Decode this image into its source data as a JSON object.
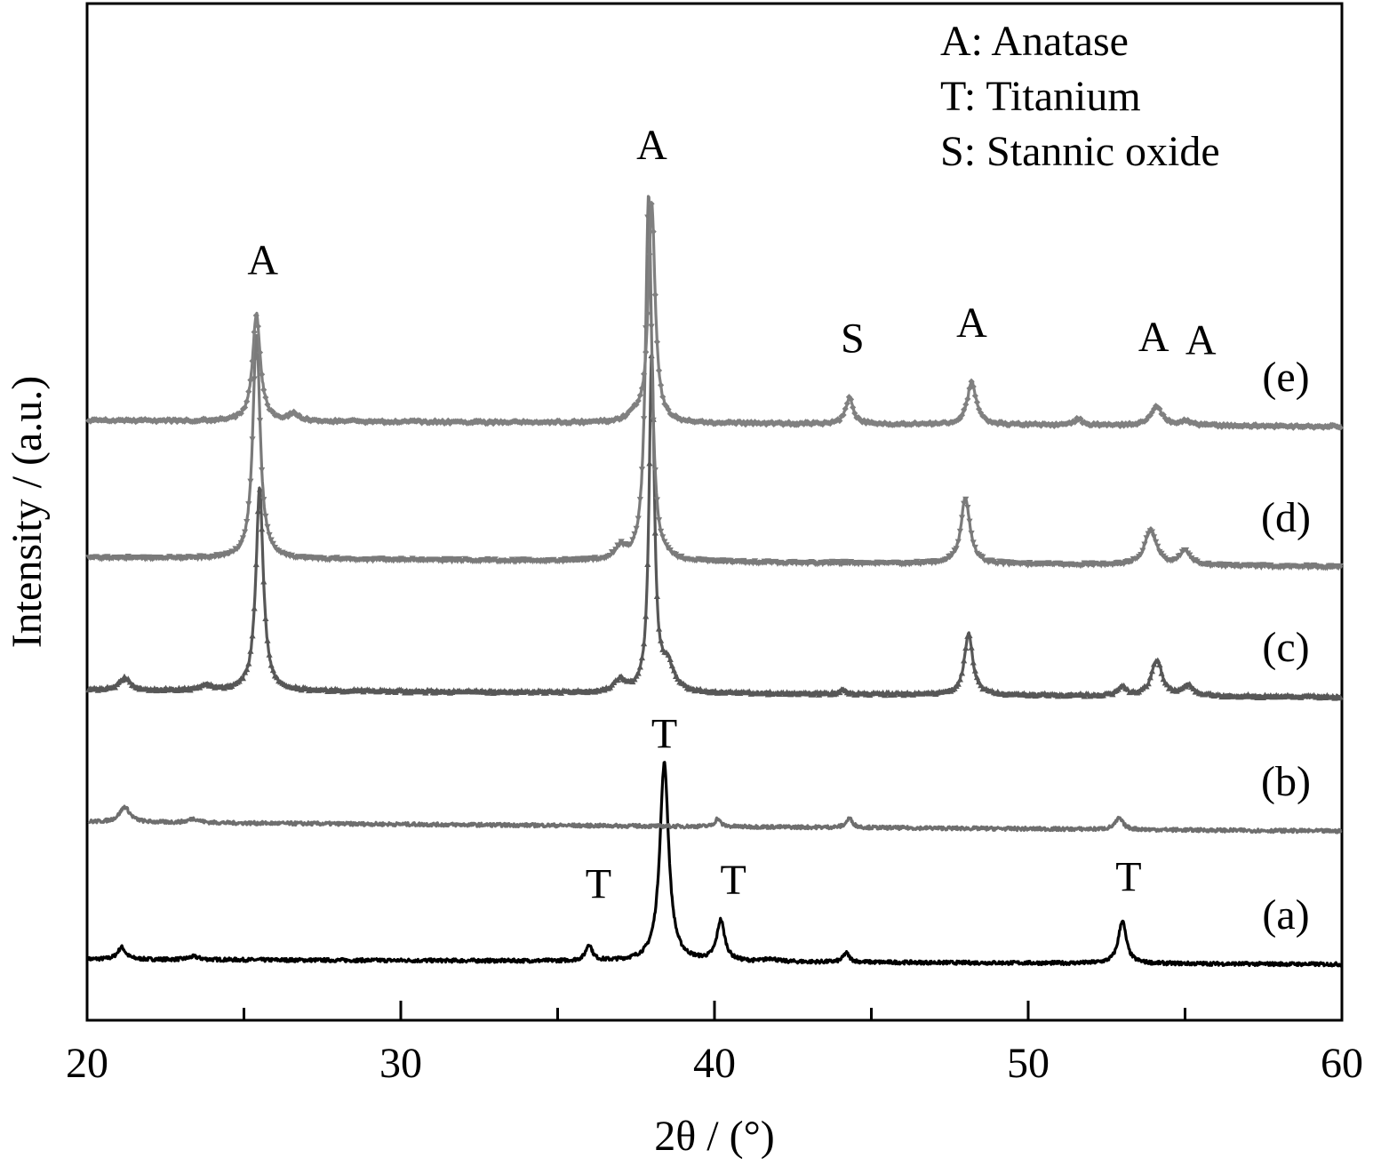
{
  "chart_data": {
    "type": "line",
    "xlabel": "2θ / (°)",
    "ylabel": "Intensity / (a.u.)",
    "xlim": [
      20,
      60
    ],
    "ylim": [
      0,
      100
    ],
    "xticks": [
      20,
      30,
      40,
      50,
      60
    ],
    "xminorticks": [
      25,
      35,
      45,
      55
    ],
    "grid": false,
    "legend_position": "top-right",
    "legend": [
      "A: Anatase",
      "T: Titanium",
      "S: Stannic oxide"
    ],
    "series": [
      {
        "name": "(a)",
        "color": "#000000",
        "marker": "none",
        "baseline": 6,
        "baseline_end": 5.5,
        "noise": 0.35,
        "peaks": [
          {
            "x": 21.1,
            "h": 1.2,
            "w": 0.15
          },
          {
            "x": 23.4,
            "h": 0.3,
            "w": 0.2
          },
          {
            "x": 36.0,
            "h": 1.6,
            "w": 0.12
          },
          {
            "x": 38.4,
            "h": 19.5,
            "w": 0.17
          },
          {
            "x": 40.2,
            "h": 4.0,
            "w": 0.15
          },
          {
            "x": 41.8,
            "h": 0.3,
            "w": 0.2
          },
          {
            "x": 44.2,
            "h": 0.9,
            "w": 0.12
          },
          {
            "x": 53.0,
            "h": 4.2,
            "w": 0.15
          }
        ]
      },
      {
        "name": "(b)",
        "color": "#6e6e6e",
        "marker": "none",
        "baseline": 19.5,
        "baseline_end": 18.6,
        "noise": 0.35,
        "peaks": [
          {
            "x": 21.2,
            "h": 1.5,
            "w": 0.2
          },
          {
            "x": 23.4,
            "h": 0.4,
            "w": 0.2
          },
          {
            "x": 40.1,
            "h": 0.8,
            "w": 0.1
          },
          {
            "x": 44.3,
            "h": 0.9,
            "w": 0.12
          },
          {
            "x": 52.9,
            "h": 1.1,
            "w": 0.15
          }
        ]
      },
      {
        "name": "(c)",
        "color": "#575757",
        "marker": "triangle",
        "baseline": 32.5,
        "baseline_end": 31.8,
        "noise": 0.3,
        "peaks": [
          {
            "x": 21.2,
            "h": 1.2,
            "w": 0.2
          },
          {
            "x": 23.8,
            "h": 0.5,
            "w": 0.2
          },
          {
            "x": 25.5,
            "h": 20,
            "w": 0.14
          },
          {
            "x": 37.0,
            "h": 1.2,
            "w": 0.2
          },
          {
            "x": 38.0,
            "h": 33,
            "w": 0.1
          },
          {
            "x": 38.5,
            "h": 2.5,
            "w": 0.25
          },
          {
            "x": 44.1,
            "h": 0.4,
            "w": 0.12
          },
          {
            "x": 48.1,
            "h": 6,
            "w": 0.16
          },
          {
            "x": 53.0,
            "h": 0.8,
            "w": 0.15
          },
          {
            "x": 54.1,
            "h": 3.5,
            "w": 0.2
          },
          {
            "x": 55.1,
            "h": 1.0,
            "w": 0.2
          }
        ]
      },
      {
        "name": "(d)",
        "color": "#7a7a7a",
        "marker": "triangle-down",
        "baseline": 45.5,
        "baseline_end": 44.6,
        "noise": 0.3,
        "peaks": [
          {
            "x": 25.4,
            "h": 22,
            "w": 0.14
          },
          {
            "x": 37.0,
            "h": 1.2,
            "w": 0.2
          },
          {
            "x": 37.9,
            "h": 36,
            "w": 0.12
          },
          {
            "x": 48.0,
            "h": 6.5,
            "w": 0.17
          },
          {
            "x": 53.9,
            "h": 3.5,
            "w": 0.22
          },
          {
            "x": 55.0,
            "h": 1.4,
            "w": 0.2
          }
        ]
      },
      {
        "name": "(e)",
        "color": "#808080",
        "marker": "diamond",
        "baseline": 59,
        "baseline_end": 58.4,
        "noise": 0.3,
        "peaks": [
          {
            "x": 25.4,
            "h": 10.5,
            "w": 0.15
          },
          {
            "x": 26.6,
            "h": 0.7,
            "w": 0.2
          },
          {
            "x": 37.4,
            "h": 0.6,
            "w": 0.2
          },
          {
            "x": 38.0,
            "h": 21.5,
            "w": 0.13
          },
          {
            "x": 44.3,
            "h": 2.6,
            "w": 0.14
          },
          {
            "x": 48.2,
            "h": 4.2,
            "w": 0.17
          },
          {
            "x": 51.6,
            "h": 0.6,
            "w": 0.15
          },
          {
            "x": 54.1,
            "h": 1.8,
            "w": 0.22
          },
          {
            "x": 55.0,
            "h": 0.4,
            "w": 0.2
          }
        ]
      }
    ],
    "annotations": [
      {
        "text": "T",
        "x": 36.3,
        "y": 12
      },
      {
        "text": "T",
        "x": 38.4,
        "y": 26.8
      },
      {
        "text": "T",
        "x": 40.6,
        "y": 12.4
      },
      {
        "text": "T",
        "x": 53.2,
        "y": 12.7
      },
      {
        "text": "A",
        "x": 25.6,
        "y": 73.4
      },
      {
        "text": "A",
        "x": 38.0,
        "y": 84.7
      },
      {
        "text": "S",
        "x": 44.4,
        "y": 65.7
      },
      {
        "text": "A",
        "x": 48.2,
        "y": 67.2
      },
      {
        "text": "A",
        "x": 54.0,
        "y": 65.8
      },
      {
        "text": "A",
        "x": 55.5,
        "y": 65.5
      }
    ]
  }
}
